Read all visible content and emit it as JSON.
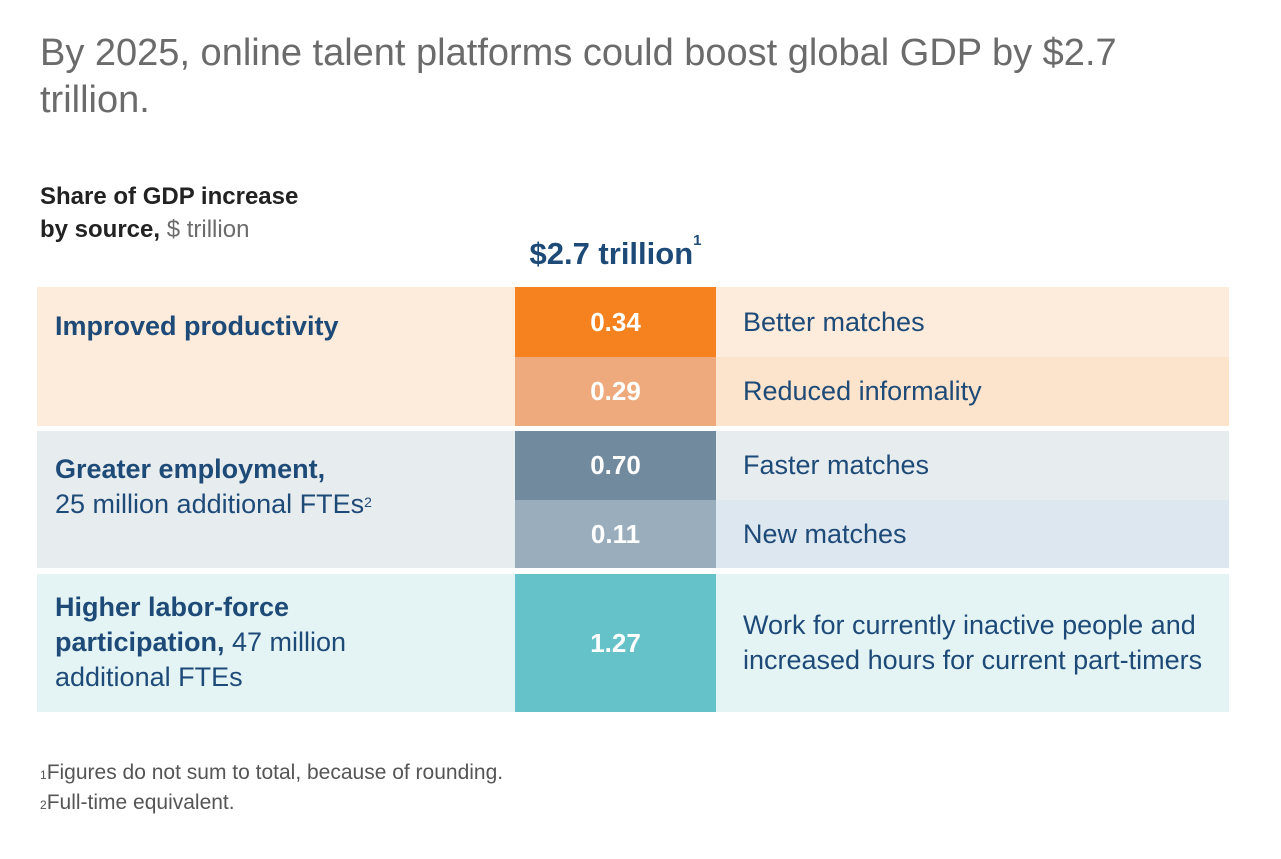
{
  "title": "By 2025, online talent platforms could boost global GDP by $2.7 trillion.",
  "subtitle": {
    "line1": "Share of GDP increase",
    "line2_bold": "by source,",
    "line2_unit": " $ trillion"
  },
  "chart_data": {
    "type": "table",
    "title": "Share of GDP increase by source, $ trillion",
    "total": {
      "label": "$2.7 trillion",
      "footnote_mark": "1"
    },
    "groups": [
      {
        "name": "Improved productivity",
        "detail": "",
        "rows": [
          {
            "source": "Better matches",
            "value": 0.34,
            "display": "0.34"
          },
          {
            "source": "Reduced informality",
            "value": 0.29,
            "display": "0.29"
          }
        ]
      },
      {
        "name": "Greater employment,",
        "detail": "25 million additional FTEs",
        "footnote_mark": "2",
        "rows": [
          {
            "source": "Faster matches",
            "value": 0.7,
            "display": "0.70"
          },
          {
            "source": "New matches",
            "value": 0.11,
            "display": "0.11"
          }
        ]
      },
      {
        "name": "Higher labor-force participation,",
        "detail": " 47 million additional FTEs",
        "rows": [
          {
            "source": "Work for currently inactive people and increased hours for current part-timers",
            "value": 1.27,
            "display": "1.27"
          }
        ]
      }
    ]
  },
  "colors": {
    "orange_dark": "#f5821f",
    "orange_light": "#eeaa7c",
    "slate_dark": "#718a9e",
    "slate_light": "#99adbc",
    "teal": "#66c2c9",
    "bg_orange_1": "#fdebdb",
    "bg_orange_2": "#fce3cb",
    "bg_slate_1": "#e7ecef",
    "bg_slate_2": "#dde7f0",
    "bg_teal": "#e4f4f5"
  },
  "footnotes": [
    {
      "mark": "1",
      "text": "Figures do not sum to total, because of rounding."
    },
    {
      "mark": "2",
      "text": "Full-time equivalent."
    }
  ]
}
